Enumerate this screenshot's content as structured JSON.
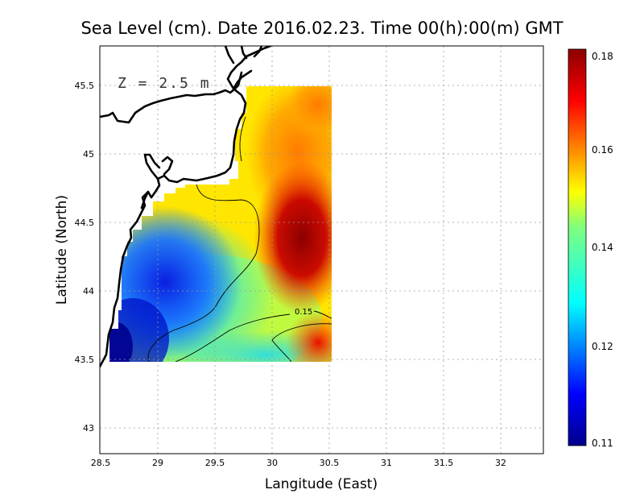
{
  "title": "Sea Level (cm). Date 2016.02.23. Time 00(h):00(m) GMT",
  "depth_label": "Z = 2.5 m",
  "xlabel": "Langitude (East)",
  "ylabel": "Latitude (North)",
  "x_ticks": [
    "28.5",
    "29",
    "29.5",
    "30",
    "30.5",
    "31",
    "31.5",
    "32"
  ],
  "y_ticks": [
    "43",
    "43.5",
    "44",
    "44.5",
    "45",
    "45.5"
  ],
  "colorbar": {
    "ticks": [
      "0.11",
      "0.12",
      "0.14",
      "0.16",
      "0.18"
    ],
    "min": 0.11,
    "max": 0.18
  },
  "contour_label": "0.15",
  "colors": {
    "low": "#00008b",
    "high": "#8b0000"
  },
  "chart_data": {
    "type": "heatmap",
    "title": "Sea Level (cm). Date 2016.02.23. Time 00(h):00(m) GMT",
    "xlabel": "Langitude (East)",
    "ylabel": "Latitude (North)",
    "xlim": [
      28.5,
      32.4
    ],
    "ylim": [
      42.8,
      45.8
    ],
    "grid": true,
    "colorscale_range": [
      0.11,
      0.18
    ],
    "legend_placement": "right",
    "contour_levels": [
      0.15
    ]
  }
}
